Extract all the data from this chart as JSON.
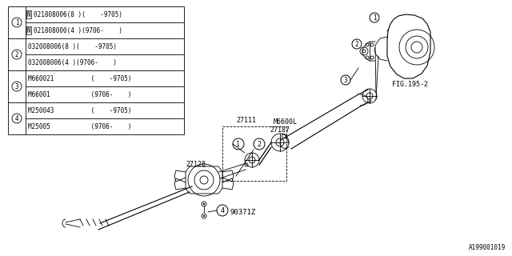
{
  "background_color": "#ffffff",
  "fig_ref": "FIG.195-2",
  "part_number_ref": "A199001019",
  "table_rows": [
    {
      "num": 1,
      "line1": "N021808006(8 )(    -9705)",
      "line1_boxed": true,
      "line2": "N021808000(4 )(9706-    )",
      "line2_boxed": true
    },
    {
      "num": 2,
      "line1": "032008006(8 )(    -9705)",
      "line1_boxed": false,
      "line2": "032008006(4 )(9706-    )",
      "line2_boxed": false
    },
    {
      "num": 3,
      "line1": "M660021          (    -9705)",
      "line1_boxed": false,
      "line2": "M66001           (9706-    )",
      "line2_boxed": false
    },
    {
      "num": 4,
      "line1": "M250043          (    -9705)",
      "line1_boxed": false,
      "line2": "M25005           (9706-    )",
      "line2_boxed": false
    }
  ]
}
